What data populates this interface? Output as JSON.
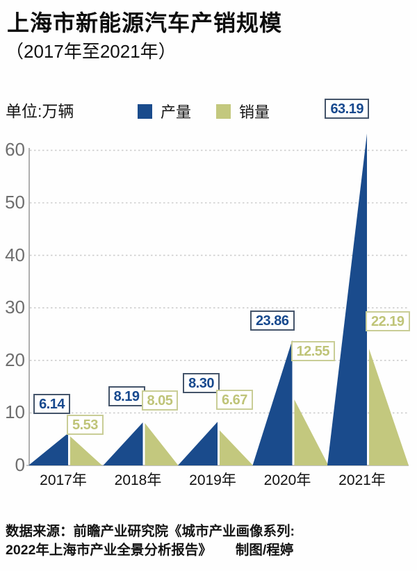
{
  "title": "上海市新能源汽车产销规模",
  "subtitle": "（2017年至2021年）",
  "unit_label": "单位:万辆",
  "legend": {
    "production": "产量",
    "sales": "销量"
  },
  "colors": {
    "production": "#1a4b8c",
    "sales": "#c3c87e",
    "production_text": "#17498e",
    "sales_text": "#bfc478",
    "grid": "#cdcdcd",
    "axis": "#b0b0b0",
    "baseline": "#c4c4c4"
  },
  "chart_data": {
    "type": "area",
    "subtype": "triangle-peaks",
    "categories": [
      "2017年",
      "2018年",
      "2019年",
      "2020年",
      "2021年"
    ],
    "series": [
      {
        "name": "产量",
        "values": [
          6.14,
          8.19,
          8.3,
          23.86,
          63.19
        ],
        "color": "#1a4b8c"
      },
      {
        "name": "销量",
        "values": [
          5.53,
          8.05,
          6.67,
          12.55,
          22.19
        ],
        "color": "#c3c87e"
      }
    ],
    "value_labels": {
      "产量": [
        "6.14",
        "8.19",
        "8.30",
        "23.86",
        "63.19"
      ],
      "销量": [
        "5.53",
        "8.05",
        "6.67",
        "12.55",
        "22.19"
      ]
    },
    "title": "上海市新能源汽车产销规模（2017年至2021年）",
    "xlabel": "",
    "ylabel": "单位:万辆",
    "ylim": [
      0,
      60
    ],
    "yticks": [
      "0",
      "10",
      "20",
      "30",
      "40",
      "50",
      "60"
    ],
    "grid": true,
    "grid_style": "dotted",
    "legend_position": "top"
  },
  "footer": {
    "line1": "数据来源：前瞻产业研究院《城市产业画像系列:",
    "line2": "2022年上海市产业全景分析报告》",
    "credit": "制图/程婷"
  }
}
